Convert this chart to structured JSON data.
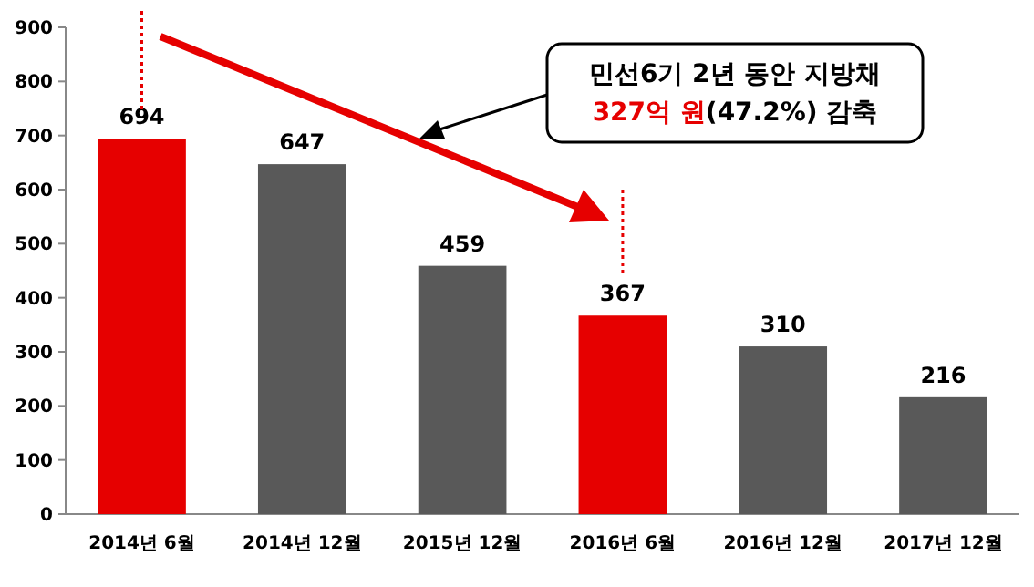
{
  "chart_data": {
    "type": "bar",
    "categories": [
      "2014년 6월",
      "2014년 12월",
      "2015년 12월",
      "2016년 6월",
      "2016년 12월",
      "2017년 12월"
    ],
    "values": [
      694,
      647,
      459,
      367,
      310,
      216
    ],
    "colors": [
      "#e60000",
      "#595959",
      "#595959",
      "#e60000",
      "#595959",
      "#595959"
    ],
    "ylim": [
      0,
      900
    ],
    "yticks": [
      0,
      100,
      200,
      300,
      400,
      500,
      600,
      700,
      800,
      900
    ],
    "data_labels": true,
    "annotations": [
      "민선6기 2년 동안 지방채\n327억 원(47.2%) 감축"
    ]
  }
}
